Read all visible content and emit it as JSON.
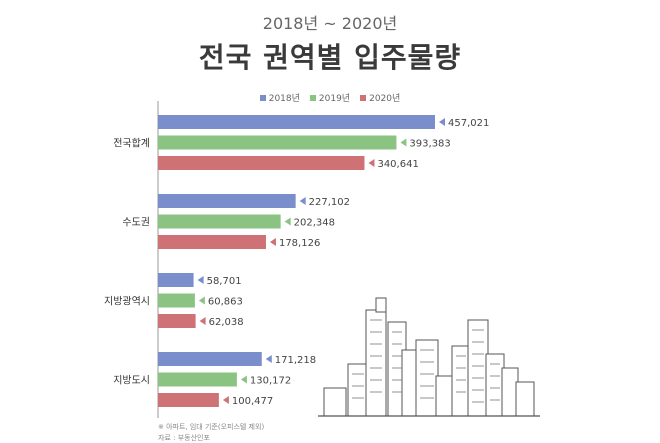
{
  "header": {
    "subtitle": "2018년 ~ 2020년",
    "title": "전국 권역별 입주물량"
  },
  "footnotes": {
    "note": "※ 아파트, 임대 기준(오피스텔 제외)",
    "source": "자료 : 부동산인포"
  },
  "colors": {
    "2018": "#7a8ecb",
    "2019": "#8bc383",
    "2020": "#cf7276"
  },
  "chart_data": {
    "type": "bar",
    "orientation": "horizontal",
    "title": "전국 권역별 입주물량",
    "subtitle": "2018년 ~ 2020년",
    "categories": [
      "전국합계",
      "수도권",
      "지방광역시",
      "지방도시"
    ],
    "series": [
      {
        "name": "2018년",
        "color": "#7a8ecb",
        "values": [
          457021,
          227102,
          58701,
          171218
        ],
        "labels": [
          "457,021",
          "227,102",
          "58,701",
          "171,218"
        ]
      },
      {
        "name": "2019년",
        "color": "#8bc383",
        "values": [
          393383,
          202348,
          60863,
          130172
        ],
        "labels": [
          "393,383",
          "202,348",
          "60,863",
          "130,172"
        ]
      },
      {
        "name": "2020년",
        "color": "#cf7276",
        "values": [
          340641,
          178126,
          62038,
          100477
        ],
        "labels": [
          "340,641",
          "178,126",
          "62,038",
          "100,477"
        ]
      }
    ],
    "legend": "top-center",
    "grid": false,
    "xlim": [
      0,
      457021
    ]
  }
}
